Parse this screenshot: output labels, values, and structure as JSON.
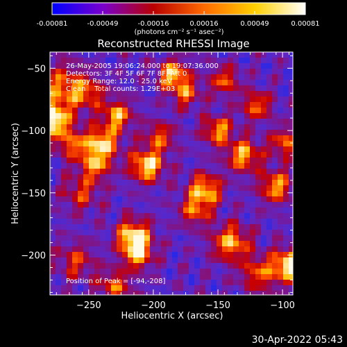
{
  "chart_data": {
    "type": "heatmap",
    "title": "Reconstructed RHESSI Image",
    "xlabel": "Heliocentric X (arcsec)",
    "ylabel": "Heliocentric Y (arcsec)",
    "xlim": [
      -280,
      -92
    ],
    "ylim": [
      -232,
      -37
    ],
    "x_ticks": [
      -250,
      -200,
      -150,
      -100
    ],
    "y_ticks": [
      -50,
      -100,
      -150,
      -200
    ],
    "x_tick_labels": [
      "−250",
      "−200",
      "−150",
      "−100"
    ],
    "y_tick_labels": [
      "−50",
      "−100",
      "−150",
      "−200"
    ],
    "colorbar": {
      "range": [
        -0.00081,
        0.00081
      ],
      "tick_labels": [
        "-0.00081",
        "-0.00049",
        "-0.00016",
        "0.00016",
        "0.00049",
        "0.00081"
      ],
      "unit_label": "(photons cm⁻² s⁻¹ asec⁻²)",
      "colors": [
        "#0000ff",
        "#7a00cc",
        "#b80000",
        "#ff6a00",
        "#ffd000",
        "#ffffff"
      ]
    },
    "annotations": [
      "26-May-2005 19:06:24.000 to 19:07:36.000",
      "Detectors: 3F 4F 5F 6F 7F 8F, Att 0",
      "Energy Range: 12.0 - 25.0 keV",
      "Clean    Total counts: 1.29E+03"
    ],
    "peak_label": "Position of Peak = [-94,-208]",
    "peak_position": [
      -94,
      -208
    ],
    "hotspots": [
      {
        "x": -278,
        "y": -92,
        "v": 1.0,
        "r": 10
      },
      {
        "x": -270,
        "y": -65,
        "v": 0.6,
        "r": 12
      },
      {
        "x": -262,
        "y": -112,
        "v": 0.55,
        "r": 8
      },
      {
        "x": -256,
        "y": -150,
        "v": 0.45,
        "r": 10
      },
      {
        "x": -250,
        "y": -70,
        "v": 0.5,
        "r": 9
      },
      {
        "x": -240,
        "y": -110,
        "v": 0.85,
        "r": 9
      },
      {
        "x": -245,
        "y": -128,
        "v": 0.65,
        "r": 8
      },
      {
        "x": -228,
        "y": -88,
        "v": 0.75,
        "r": 8
      },
      {
        "x": -215,
        "y": -185,
        "v": 0.95,
        "r": 9
      },
      {
        "x": -212,
        "y": -200,
        "v": 0.7,
        "r": 8
      },
      {
        "x": -205,
        "y": -128,
        "v": 0.9,
        "r": 9
      },
      {
        "x": -195,
        "y": -105,
        "v": 0.55,
        "r": 8
      },
      {
        "x": -185,
        "y": -55,
        "v": 0.8,
        "r": 8
      },
      {
        "x": -175,
        "y": -70,
        "v": 0.55,
        "r": 8
      },
      {
        "x": -160,
        "y": -148,
        "v": 0.8,
        "r": 9
      },
      {
        "x": -168,
        "y": -165,
        "v": 0.55,
        "r": 8
      },
      {
        "x": -145,
        "y": -60,
        "v": 0.55,
        "r": 8
      },
      {
        "x": -150,
        "y": -100,
        "v": 0.7,
        "r": 8
      },
      {
        "x": -140,
        "y": -190,
        "v": 0.75,
        "r": 10
      },
      {
        "x": -130,
        "y": -120,
        "v": 0.75,
        "r": 9
      },
      {
        "x": -120,
        "y": -80,
        "v": 0.6,
        "r": 8
      },
      {
        "x": -118,
        "y": -215,
        "v": 0.55,
        "r": 10
      },
      {
        "x": -105,
        "y": -145,
        "v": 0.7,
        "r": 9
      },
      {
        "x": -98,
        "y": -110,
        "v": 0.6,
        "r": 8
      },
      {
        "x": -94,
        "y": -208,
        "v": 1.0,
        "r": 9
      },
      {
        "x": -230,
        "y": -225,
        "v": 0.55,
        "r": 9
      },
      {
        "x": -260,
        "y": -205,
        "v": 0.45,
        "r": 10
      }
    ]
  },
  "footer": {
    "timestamp": "30-Apr-2022 05:43"
  }
}
